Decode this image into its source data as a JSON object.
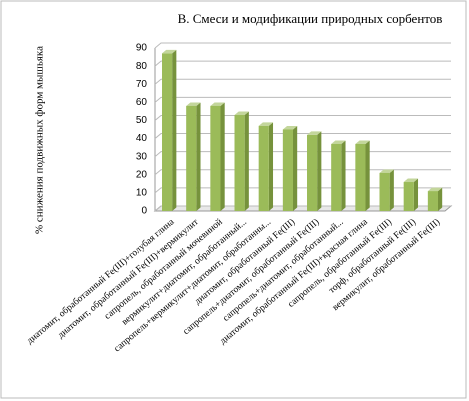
{
  "chart_data": {
    "type": "bar",
    "title": "В. Смеси и модификации природных сорбентов",
    "y_label": "% снижения подвижных форм мышьяка",
    "categories": [
      "диатомит, обработанный Fe(III)+голубая глина",
      "диатомит, обработанный Fe(III)+вермикулит",
      "сапропель, обработанный мочевиной",
      "вермикулит+диатомит, обработанный...",
      "сапропель+вермикулит+диатомит, обработанны...",
      "диатомит, обработанный Fe(III)",
      "сапропель+диатомит, обработанный Fe(III)",
      "сапропель+диатомит, обработанный...",
      "диатомит, обработанный Fe(III)+красная глина",
      "сапропель, обработанный Fe(III)",
      "торф, обработанный Fe(III)",
      "вермикулит, обработанный Fe(III)"
    ],
    "values": [
      87,
      58,
      58,
      53,
      47,
      45,
      42,
      37,
      37,
      21,
      16,
      11
    ],
    "color": "#9bbb59",
    "ylim": [
      0,
      90
    ],
    "yticks": [
      0,
      10,
      20,
      30,
      40,
      50,
      60,
      70,
      80,
      90
    ],
    "grid": true
  }
}
